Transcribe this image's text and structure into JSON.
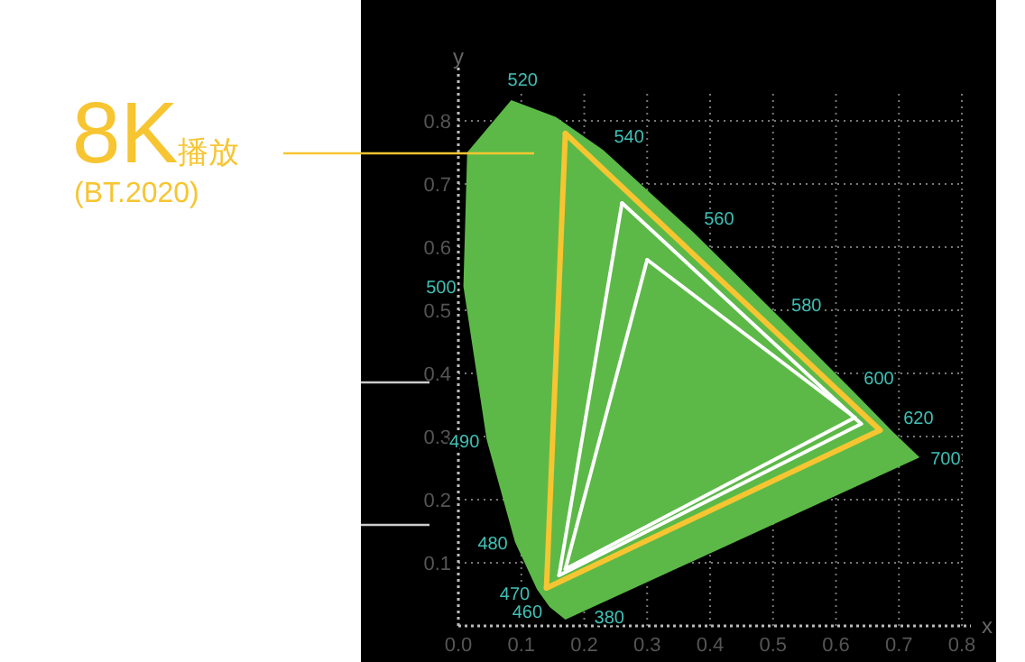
{
  "chart_data": {
    "type": "line",
    "xlabel": "x",
    "ylabel": "y",
    "xlim": [
      0,
      0.8
    ],
    "ylim": [
      0,
      0.85
    ],
    "xticks": [
      {
        "value": 0,
        "label": "0.0"
      },
      0.1,
      0.2,
      0.3,
      0.4,
      0.5,
      0.6,
      0.7,
      0.8
    ],
    "yticks": [
      0.1,
      0.2,
      0.3,
      0.4,
      0.5,
      0.6,
      0.7,
      0.8
    ],
    "grid": true,
    "marker": "none",
    "line_style": "solid",
    "series": [
      {
        "type": "area",
        "color": "#5cb947",
        "x": [
          0.17,
          0.145,
          0.125,
          0.09,
          0.045,
          0.008,
          0.014,
          0.084,
          0.155,
          0.23,
          0.373,
          0.512,
          0.627,
          0.69,
          0.733,
          0.17
        ],
        "values": [
          0.01,
          0.03,
          0.058,
          0.133,
          0.295,
          0.538,
          0.75,
          0.833,
          0.806,
          0.754,
          0.624,
          0.487,
          0.372,
          0.308,
          0.267,
          0.01
        ]
      },
      {
        "type": "line",
        "color": "#f7c531",
        "x": [
          0.17,
          0.67
        ],
        "values": [
          0.78,
          0.31
        ]
      },
      {
        "type": "line",
        "color": "#f7c531",
        "x": [
          0.14,
          0.67
        ],
        "values": [
          0.06,
          0.31
        ]
      },
      {
        "type": "line",
        "color": "#f7c531",
        "x": [
          0.14,
          0.17
        ],
        "values": [
          0.06,
          0.78
        ]
      },
      {
        "type": "line",
        "color": "#ffffff",
        "x": [
          0.26,
          0.64
        ],
        "values": [
          0.67,
          0.32
        ]
      },
      {
        "type": "line",
        "color": "#ffffff",
        "x": [
          0.16,
          0.64
        ],
        "values": [
          0.08,
          0.32
        ]
      },
      {
        "type": "line",
        "color": "#ffffff",
        "x": [
          0.16,
          0.26
        ],
        "values": [
          0.08,
          0.67
        ]
      },
      {
        "type": "line",
        "color": "#ffffff",
        "x": [
          0.3,
          0.63
        ],
        "values": [
          0.58,
          0.33
        ]
      },
      {
        "type": "line",
        "color": "#ffffff",
        "x": [
          0.17,
          0.63
        ],
        "values": [
          0.09,
          0.33
        ]
      },
      {
        "type": "line",
        "color": "#ffffff",
        "x": [
          0.17,
          0.3
        ],
        "values": [
          0.09,
          0.58
        ]
      }
    ],
    "annotations": [
      "8K播放",
      "(BT.2020)",
      {
        "text": "520",
        "x": 0.084,
        "y": 0.833
      },
      {
        "text": "540",
        "x": 0.23,
        "y": 0.754
      },
      {
        "text": "560",
        "x": 0.373,
        "y": 0.624
      },
      {
        "text": "580",
        "x": 0.512,
        "y": 0.487
      },
      {
        "text": "600",
        "x": 0.627,
        "y": 0.372
      },
      {
        "text": "620",
        "x": 0.69,
        "y": 0.308
      },
      {
        "text": "700",
        "x": 0.733,
        "y": 0.267
      },
      {
        "text": "500",
        "x": 0.008,
        "y": 0.538
      },
      {
        "text": "490",
        "x": 0.045,
        "y": 0.295
      },
      {
        "text": "480",
        "x": 0.09,
        "y": 0.133
      },
      {
        "text": "470",
        "x": 0.125,
        "y": 0.058
      },
      {
        "text": "460",
        "x": 0.145,
        "y": 0.03
      },
      {
        "text": "380",
        "x": 0.17,
        "y": 0.01
      }
    ]
  }
}
